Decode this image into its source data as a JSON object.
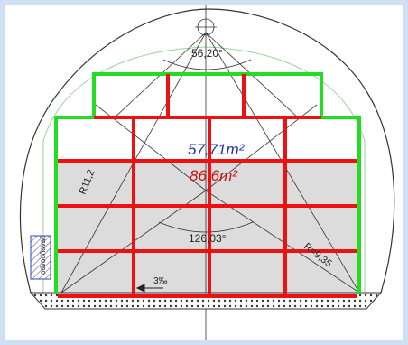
{
  "diagram": {
    "angle_top": "56,20°",
    "angle_bottom": "126,03°",
    "radius_left": "R11,2",
    "radius_right": "R=9,35",
    "area_blue": "57,71m²",
    "area_red": "86,6m²",
    "slope": "3‰",
    "drain_label": "odvodňovač",
    "colors": {
      "green_outline": "#22dd22",
      "red_grid": "#ee1111",
      "blue_text": "#2233aa",
      "red_text": "#cc1111",
      "fill_gray": "#dcdcdc",
      "line_dark": "#333333"
    }
  }
}
